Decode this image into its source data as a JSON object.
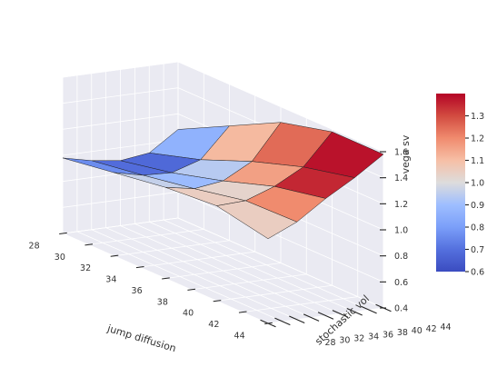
{
  "chart_data": {
    "type": "surface3d",
    "title": "",
    "xlabel": "jump diffusion",
    "ylabel": "stochastic vol",
    "zlabel": "vega sv",
    "x_ticks": [
      28,
      30,
      32,
      34,
      36,
      38,
      40,
      42,
      44
    ],
    "y_ticks": [
      28,
      30,
      32,
      34,
      36,
      38,
      40,
      42,
      44
    ],
    "z_ticks": [
      "0.4",
      "0.6",
      "0.8",
      "1.0",
      "1.2",
      "1.4",
      "1.6"
    ],
    "xlim": [
      28,
      44
    ],
    "ylim": [
      28,
      44
    ],
    "zlim": [
      0.4,
      1.6
    ],
    "x_grid": [
      28,
      32,
      36,
      40,
      44
    ],
    "y_grid": [
      28,
      32,
      36,
      40,
      44
    ],
    "z_grid": [
      [
        0.98,
        0.93,
        0.9,
        0.93,
        1.08
      ],
      [
        1.04,
        0.99,
        0.98,
        1.05,
        1.28
      ],
      [
        1.1,
        1.06,
        1.09,
        1.21,
        1.48
      ],
      [
        1.13,
        1.14,
        1.22,
        1.34,
        1.58
      ],
      [
        1.05,
        1.15,
        1.3,
        1.43,
        1.58
      ]
    ],
    "cell_values": [
      [
        0.76,
        0.69,
        0.68,
        0.86
      ],
      [
        0.96,
        0.89,
        0.94,
        1.11
      ],
      [
        1.05,
        1.03,
        1.16,
        1.25
      ],
      [
        1.05,
        1.2,
        1.35,
        1.38
      ]
    ],
    "colorbar": {
      "colormap": "coolwarm",
      "range": [
        0.6,
        1.4
      ],
      "ticks": [
        "0.6",
        "0.7",
        "0.8",
        "0.9",
        "1.0",
        "1.1",
        "1.2",
        "1.3"
      ]
    },
    "grid": true
  }
}
